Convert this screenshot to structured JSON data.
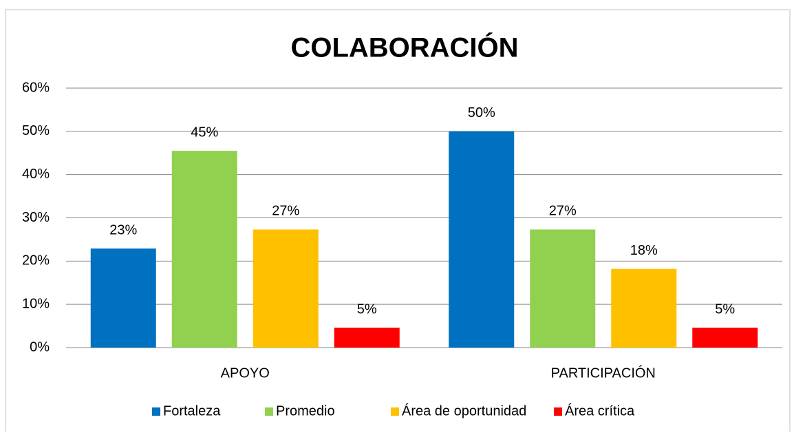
{
  "chart_data": {
    "type": "bar",
    "title": "COLABORACIÓN",
    "categories": [
      "APOYO",
      "PARTICIPACIÓN"
    ],
    "series": [
      {
        "name": "Fortaleza",
        "color": "#0070c0",
        "values": [
          22.9,
          50
        ],
        "value_labels": [
          "23%",
          "50%"
        ]
      },
      {
        "name": "Promedio",
        "color": "#92d050",
        "values": [
          45.5,
          27.3
        ],
        "value_labels": [
          "45%",
          "27%"
        ]
      },
      {
        "name": "Área de oportunidad",
        "color": "#ffc000",
        "values": [
          27.3,
          18.2
        ],
        "value_labels": [
          "27%",
          "18%"
        ]
      },
      {
        "name": "Área crítica",
        "color": "#ff0000",
        "values": [
          4.6,
          4.6
        ],
        "value_labels": [
          "5%",
          "5%"
        ]
      }
    ],
    "ylim": [
      0,
      60
    ],
    "yticks": [
      {
        "value": 0,
        "label": "0%"
      },
      {
        "value": 10,
        "label": "10%"
      },
      {
        "value": 20,
        "label": "20%"
      },
      {
        "value": 30,
        "label": "30%"
      },
      {
        "value": 40,
        "label": "40%"
      },
      {
        "value": 50,
        "label": "50%"
      },
      {
        "value": 60,
        "label": "60%"
      }
    ],
    "grid": true,
    "legend": "bottom"
  }
}
